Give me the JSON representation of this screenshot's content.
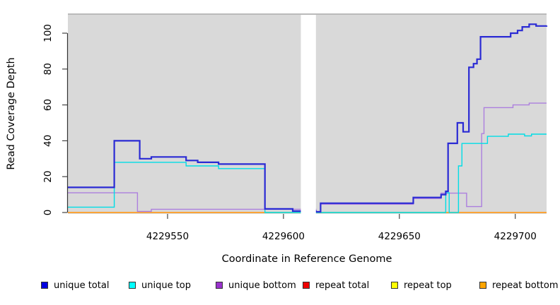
{
  "axes": {
    "x_label": "Coordinate in Reference Genome",
    "y_label": "Read Coverage Depth"
  },
  "legend": {
    "items": [
      {
        "label": "unique total",
        "color": "#0000E0"
      },
      {
        "label": "unique top",
        "color": "#00FFFF"
      },
      {
        "label": "unique bottom",
        "color": "#9932CC"
      },
      {
        "label": "repeat total",
        "color": "#EE0000"
      },
      {
        "label": "repeat top",
        "color": "#FFFF00"
      },
      {
        "label": "repeat bottom",
        "color": "#FFA500"
      }
    ]
  },
  "chart_data": {
    "type": "step-line",
    "title": "",
    "xlabel": "Coordinate in Reference Genome",
    "ylabel": "Read Coverage Depth",
    "xlim": [
      4229507,
      4229713.5
    ],
    "ylim": [
      0,
      110
    ],
    "x_ticks": [
      4229550,
      4229600,
      4229650,
      4229700
    ],
    "y_ticks": [
      0,
      20,
      40,
      60,
      80,
      100
    ],
    "plot_background": "#d9d9d9",
    "missing_data_region": [
      4229607.5,
      4229614
    ],
    "zero_overlap": {
      "color": "#98CD98",
      "value": 0,
      "ranges": [
        [
          4229592,
          4229607.5
        ],
        [
          4229614,
          4229669.5
        ]
      ]
    },
    "series": [
      {
        "name": "repeat total",
        "color": "#DD2222",
        "width": 1.0,
        "points": [
          [
            4229507,
            0
          ],
          [
            4229713.5,
            0
          ]
        ]
      },
      {
        "name": "repeat top",
        "color": "#FFFF44",
        "width": 1.0,
        "points": [
          [
            4229507,
            0
          ],
          [
            4229713.5,
            0
          ]
        ]
      },
      {
        "name": "repeat bottom",
        "color": "#FF9D20",
        "width": 1.8,
        "points": [
          [
            4229507,
            0
          ],
          [
            4229713.5,
            0
          ]
        ]
      },
      {
        "name": "unique bottom",
        "color": "#AC7FDE",
        "width": 1.4,
        "points": [
          [
            4229507,
            11
          ],
          [
            4229537,
            0.6
          ],
          [
            4229543,
            1.8
          ],
          [
            4229614,
            0.3
          ],
          [
            4229616,
            4.6
          ],
          [
            4229656,
            7.8
          ],
          [
            4229668,
            10.8
          ],
          [
            4229679,
            3.3
          ],
          [
            4229685.5,
            44
          ],
          [
            4229686.5,
            58.5
          ],
          [
            4229699,
            60
          ],
          [
            4229706,
            61
          ],
          [
            4229713.5,
            61
          ]
        ]
      },
      {
        "name": "unique top",
        "color": "#00DDE6",
        "width": 1.4,
        "points": [
          [
            4229507,
            3
          ],
          [
            4229527,
            28
          ],
          [
            4229558,
            26
          ],
          [
            4229572,
            24.5
          ],
          [
            4229592,
            0
          ],
          [
            4229670,
            11
          ],
          [
            4229671.5,
            0
          ],
          [
            4229675.5,
            26
          ],
          [
            4229677,
            38.5
          ],
          [
            4229688,
            42.5
          ],
          [
            4229697,
            43.7
          ],
          [
            4229704,
            42.7
          ],
          [
            4229707,
            43.7
          ],
          [
            4229713.5,
            43.7
          ]
        ]
      },
      {
        "name": "unique total",
        "color": "#2A2AD4",
        "width": 2.2,
        "points": [
          [
            4229507,
            14
          ],
          [
            4229527,
            40
          ],
          [
            4229538,
            30
          ],
          [
            4229543,
            31
          ],
          [
            4229558,
            29
          ],
          [
            4229563,
            28
          ],
          [
            4229572,
            27
          ],
          [
            4229592,
            2
          ],
          [
            4229604,
            0.8
          ],
          [
            4229614,
            0.4
          ],
          [
            4229616,
            5.2
          ],
          [
            4229656,
            8.4
          ],
          [
            4229668,
            10
          ],
          [
            4229670,
            11.8
          ],
          [
            4229671,
            38.6
          ],
          [
            4229675,
            50
          ],
          [
            4229677.5,
            45
          ],
          [
            4229680,
            81
          ],
          [
            4229682,
            83
          ],
          [
            4229683.5,
            85.5
          ],
          [
            4229685,
            98
          ],
          [
            4229698,
            100
          ],
          [
            4229701,
            101.5
          ],
          [
            4229703,
            103.5
          ],
          [
            4229706,
            105
          ],
          [
            4229709,
            104
          ],
          [
            4229713.5,
            104.3
          ]
        ]
      }
    ]
  }
}
